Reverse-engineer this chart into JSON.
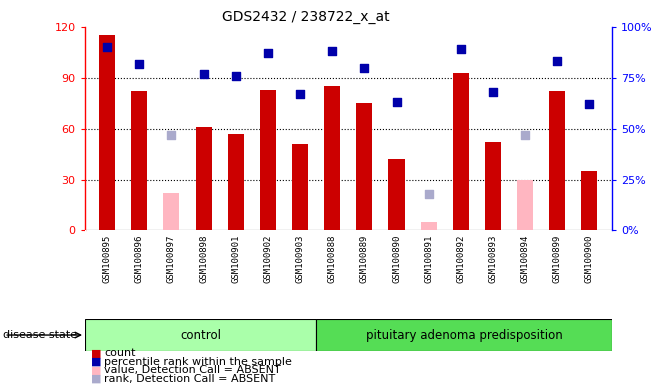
{
  "title": "GDS2432 / 238722_x_at",
  "samples": [
    "GSM100895",
    "GSM100896",
    "GSM100897",
    "GSM100898",
    "GSM100901",
    "GSM100902",
    "GSM100903",
    "GSM100888",
    "GSM100889",
    "GSM100890",
    "GSM100891",
    "GSM100892",
    "GSM100893",
    "GSM100894",
    "GSM100899",
    "GSM100900"
  ],
  "count_values": [
    115,
    82,
    0,
    61,
    57,
    83,
    51,
    85,
    75,
    42,
    0,
    93,
    52,
    0,
    82,
    35
  ],
  "count_absent": [
    0,
    0,
    22,
    0,
    0,
    0,
    0,
    0,
    0,
    0,
    5,
    0,
    0,
    30,
    0,
    0
  ],
  "rank_values": [
    90,
    82,
    0,
    77,
    76,
    87,
    67,
    88,
    80,
    63,
    0,
    89,
    68,
    0,
    83,
    62
  ],
  "rank_absent": [
    0,
    0,
    47,
    0,
    0,
    0,
    0,
    0,
    0,
    0,
    18,
    0,
    0,
    47,
    0,
    0
  ],
  "n_control": 7,
  "ylim_left": [
    0,
    120
  ],
  "ylim_right": [
    0,
    100
  ],
  "yticks_left": [
    0,
    30,
    60,
    90,
    120
  ],
  "ytick_labels_right": [
    "0%",
    "25%",
    "50%",
    "75%",
    "100%"
  ],
  "bar_color": "#CC0000",
  "absent_bar_color": "#FFB6C1",
  "rank_color": "#0000AA",
  "rank_absent_color": "#AAAACC",
  "control_bg": "#AAFFAA",
  "pituitary_bg": "#55DD55",
  "xlab_bg": "#D0D0D0",
  "bar_width": 0.5,
  "rank_marker_size": 30
}
